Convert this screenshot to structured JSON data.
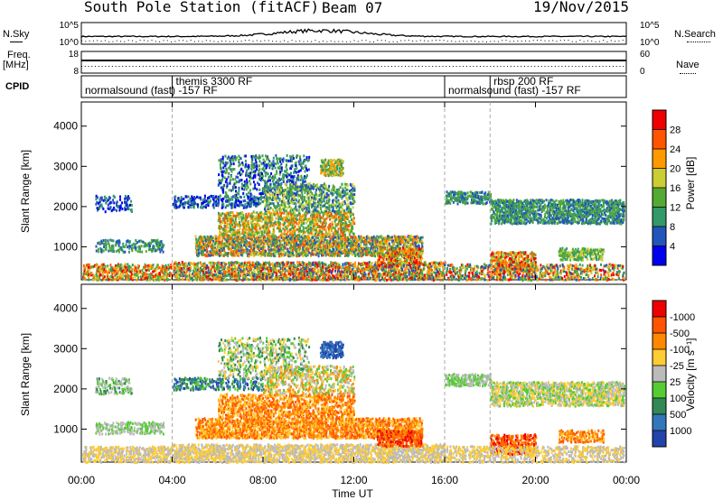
{
  "header": {
    "title": "South Pole Station (fitACF)",
    "beam": "Beam 07",
    "date": "19/Nov/2015"
  },
  "noise_panel": {
    "left_label": "N.Sky",
    "right_label": "N.Search",
    "ticks_left": [
      "10^5",
      "10^0"
    ],
    "ticks_right": [
      "10^5",
      "10^0"
    ]
  },
  "freq_panel": {
    "left_label_line1": "Freq.",
    "left_label_line2": "[MHz]",
    "right_label": "Nave",
    "ticks_left": [
      "18",
      "8"
    ],
    "ticks_right": [
      "60",
      "0"
    ]
  },
  "cpid_panel": {
    "label": "CPID",
    "segments": [
      {
        "name": "normalsound (fast) -157 RF",
        "start_h": 0,
        "end_h": 4
      },
      {
        "name": "themis 3300 RF",
        "start_h": 4,
        "end_h": 16
      },
      {
        "name": "normalsound (fast) -157 RF",
        "start_h": 16,
        "end_h": 18
      },
      {
        "name": "rbsp 200 RF",
        "start_h": 18,
        "end_h": 24
      }
    ]
  },
  "chart_data": [
    {
      "type": "heatmap",
      "name": "power",
      "ylabel": "Slant Range [km]",
      "yticks": [
        1000,
        2000,
        3000,
        4000
      ],
      "ylim": [
        180,
        4600
      ],
      "xlim": [
        0,
        24
      ],
      "colorbar": {
        "label": "Power [dB]",
        "ticks": [
          "4",
          "8",
          "12",
          "16",
          "20",
          "24",
          "28"
        ],
        "colors": [
          "#0000ee",
          "#2255bb",
          "#339966",
          "#55aa33",
          "#cccc33",
          "#ff9900",
          "#ff5500",
          "#ee0000"
        ]
      }
    },
    {
      "type": "heatmap",
      "name": "velocity",
      "ylabel": "Slant Range [km]",
      "yticks": [
        1000,
        2000,
        3000,
        4000
      ],
      "ylim": [
        180,
        4600
      ],
      "xlim": [
        0,
        24
      ],
      "xlabel": "Time UT",
      "xticks": [
        "00:00",
        "04:00",
        "08:00",
        "12:00",
        "16:00",
        "20:00",
        "00:00"
      ],
      "colorbar": {
        "label": "Velocity [m s⁻¹]",
        "ticks": [
          "1000",
          "500",
          "100",
          "25",
          "-25",
          "-100",
          "-500",
          "-1000"
        ],
        "colors": [
          "#2244aa",
          "#3377bb",
          "#338855",
          "#55cc33",
          "#bbbbbb",
          "#ffcc33",
          "#ff8800",
          "#ff5500",
          "#ee0000"
        ]
      }
    }
  ]
}
